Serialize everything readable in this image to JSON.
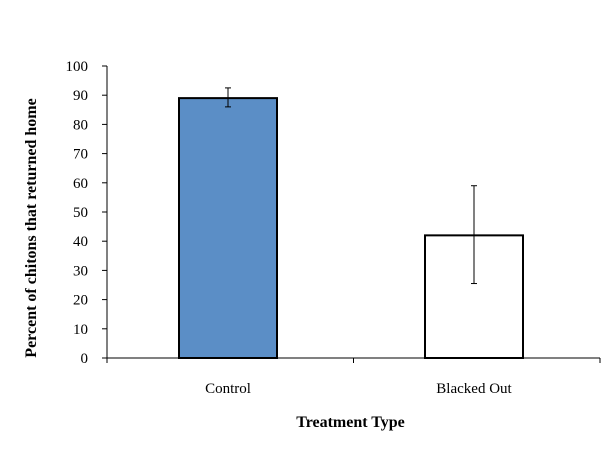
{
  "chart_data": {
    "type": "bar",
    "title": "",
    "xlabel": "Treatment Type",
    "ylabel": "Percent of chitons that returned home",
    "ylim": [
      0,
      100
    ],
    "yticks": [
      0,
      10,
      20,
      30,
      40,
      50,
      60,
      70,
      80,
      90,
      100
    ],
    "categories": [
      "Control",
      "Blacked Out"
    ],
    "values": [
      89,
      42
    ],
    "error_low": [
      86,
      25.5
    ],
    "error_high": [
      92.5,
      59
    ],
    "bar_colors": [
      "#5b8ec6",
      "#ffffff"
    ],
    "bar_edge_color": "#000000",
    "grid": false,
    "legend": "none"
  }
}
